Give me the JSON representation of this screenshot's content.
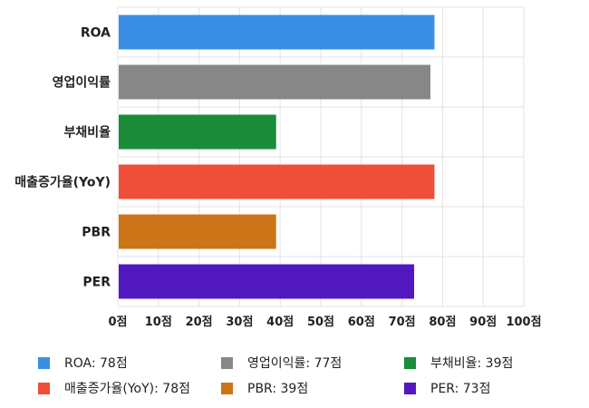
{
  "chart_data": {
    "type": "bar",
    "orientation": "horizontal",
    "categories": [
      "ROA",
      "영업이익률",
      "부채비율",
      "매출증가율(YoY)",
      "PBR",
      "PER"
    ],
    "values": [
      78,
      77,
      39,
      78,
      39,
      73
    ],
    "colors": [
      "#3a8ee6",
      "#878787",
      "#1a8c3a",
      "#ee4e3a",
      "#cc7418",
      "#5218c0"
    ],
    "xlim": [
      0,
      100
    ],
    "xticks": [
      0,
      10,
      20,
      30,
      40,
      50,
      60,
      70,
      80,
      90,
      100
    ],
    "tick_suffix": "점",
    "grid": true,
    "legend_position": "bottom",
    "legend": [
      {
        "label": "ROA: 78점",
        "color": "#3a8ee6"
      },
      {
        "label": "영업이익률: 77점",
        "color": "#878787"
      },
      {
        "label": "부채비율: 39점",
        "color": "#1a8c3a"
      },
      {
        "label": "매출증가율(YoY): 78점",
        "color": "#ee4e3a"
      },
      {
        "label": "PBR: 39점",
        "color": "#cc7418"
      },
      {
        "label": "PER: 73점",
        "color": "#5218c0"
      }
    ]
  }
}
